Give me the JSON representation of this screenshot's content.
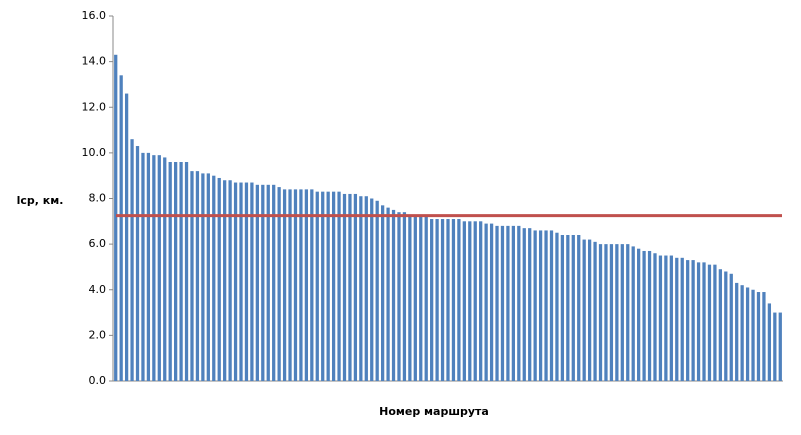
{
  "chart_data": {
    "type": "bar",
    "y_label": "lср, км.",
    "x_label": "Номер маршрута",
    "color": "#4f81bd",
    "ylim": [
      0,
      16
    ],
    "yticks": [
      {
        "value": 0,
        "label": "0.0"
      },
      {
        "value": 2,
        "label": "2.0"
      },
      {
        "value": 4,
        "label": "4.0"
      },
      {
        "value": 6,
        "label": "6.0"
      },
      {
        "value": 8,
        "label": "8.0"
      },
      {
        "value": 10,
        "label": "10.0"
      },
      {
        "value": 12,
        "label": "12.0"
      },
      {
        "value": 14,
        "label": "14.0"
      },
      {
        "value": 16,
        "label": "16.0"
      }
    ],
    "grid": false,
    "mean_line": {
      "value": 7.25,
      "color": "#c0504d"
    },
    "categories": [
      null,
      null,
      null,
      null,
      null,
      null,
      null,
      null,
      null,
      null,
      null,
      null,
      null,
      null,
      null,
      null,
      null,
      null,
      null,
      null,
      null,
      null,
      null,
      null,
      null,
      null,
      null,
      null,
      null,
      null,
      null,
      null,
      null,
      null,
      null,
      null,
      null,
      null,
      null,
      null,
      null,
      null,
      null,
      null,
      null,
      null,
      null,
      null,
      null,
      null,
      null,
      null,
      null,
      null,
      null,
      null,
      null,
      null,
      null,
      null,
      null,
      null,
      null,
      null,
      null,
      null,
      null,
      null,
      null,
      null,
      null,
      null,
      null,
      null,
      null,
      null,
      null,
      null,
      null,
      null,
      null,
      null,
      null,
      null,
      null,
      null,
      null,
      null,
      null,
      null,
      null,
      null,
      null,
      null,
      null,
      null,
      null,
      null,
      null,
      null,
      null,
      null,
      null,
      null,
      null,
      null,
      null,
      null,
      null,
      null,
      null,
      null,
      null,
      null,
      null,
      null,
      null,
      null,
      null,
      null,
      null,
      null,
      null
    ],
    "values": [
      14.3,
      13.4,
      12.6,
      10.6,
      10.3,
      10.0,
      10.0,
      9.9,
      9.9,
      9.8,
      9.6,
      9.6,
      9.6,
      9.6,
      9.2,
      9.2,
      9.1,
      9.1,
      9.0,
      8.9,
      8.8,
      8.8,
      8.7,
      8.7,
      8.7,
      8.7,
      8.6,
      8.6,
      8.6,
      8.6,
      8.5,
      8.4,
      8.4,
      8.4,
      8.4,
      8.4,
      8.4,
      8.3,
      8.3,
      8.3,
      8.3,
      8.3,
      8.2,
      8.2,
      8.2,
      8.1,
      8.1,
      8.0,
      7.9,
      7.7,
      7.6,
      7.5,
      7.4,
      7.4,
      7.2,
      7.2,
      7.2,
      7.2,
      7.1,
      7.1,
      7.1,
      7.1,
      7.1,
      7.1,
      7.0,
      7.0,
      7.0,
      7.0,
      6.9,
      6.9,
      6.8,
      6.8,
      6.8,
      6.8,
      6.8,
      6.7,
      6.7,
      6.6,
      6.6,
      6.6,
      6.6,
      6.5,
      6.4,
      6.4,
      6.4,
      6.4,
      6.2,
      6.2,
      6.1,
      6.0,
      6.0,
      6.0,
      6.0,
      6.0,
      6.0,
      5.9,
      5.8,
      5.7,
      5.7,
      5.6,
      5.5,
      5.5,
      5.5,
      5.4,
      5.4,
      5.3,
      5.3,
      5.2,
      5.2,
      5.1,
      5.1,
      4.9,
      4.8,
      4.7,
      4.3,
      4.2,
      4.1,
      4.0,
      3.9,
      3.9,
      3.4,
      3.0,
      3.0
    ]
  }
}
